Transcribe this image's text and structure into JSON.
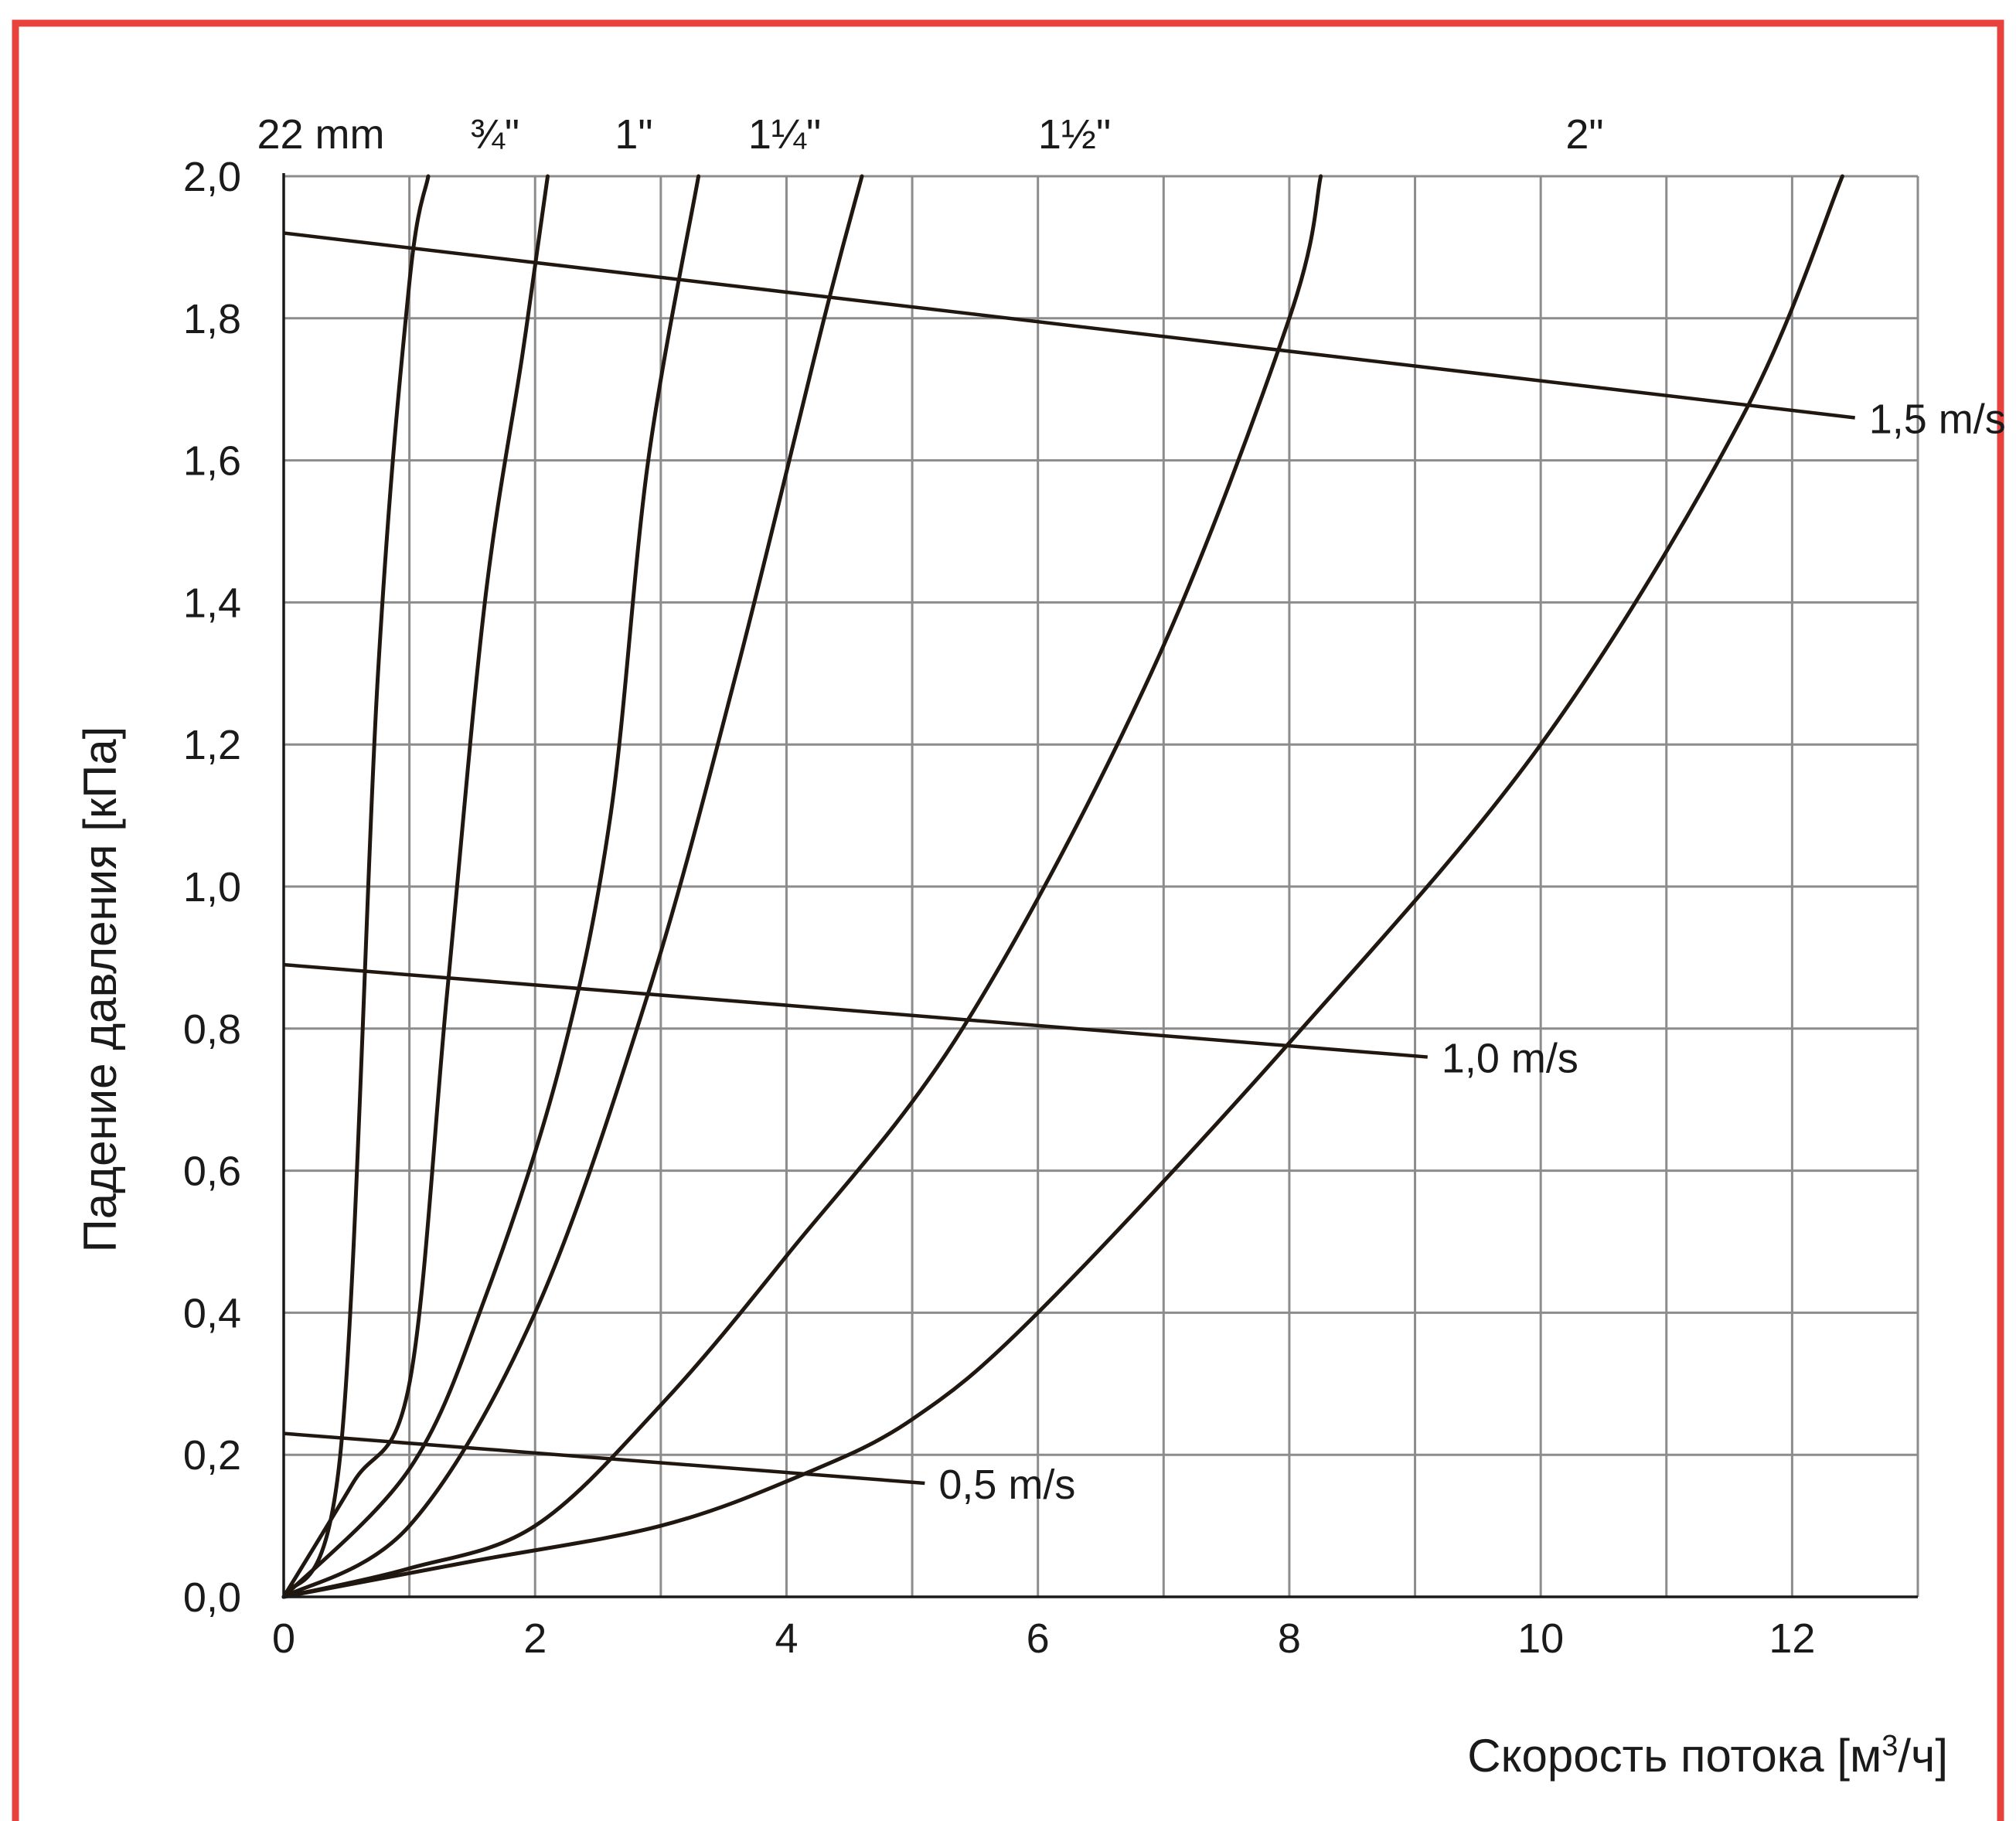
{
  "colors": {
    "border": "#e8423f",
    "curve": "#1f1710",
    "grid": "#8c8c8c",
    "background": "#ffffff"
  },
  "chart_data": {
    "type": "line",
    "title": "",
    "xlabel": "Скорость потока [м³/ч]",
    "xlabel_base": "Скорость потока [м",
    "xlabel_sup": "3",
    "xlabel_tail": "/ч]",
    "ylabel": "Падение давления [кПа]",
    "xlim": [
      0,
      13
    ],
    "ylim": [
      0,
      2.0
    ],
    "x_ticks": [
      0,
      2,
      4,
      6,
      8,
      10,
      12
    ],
    "x_tick_labels": [
      "0",
      "2",
      "4",
      "6",
      "8",
      "10",
      "12"
    ],
    "y_ticks": [
      0,
      0.2,
      0.4,
      0.6,
      0.8,
      1.0,
      1.2,
      1.4,
      1.6,
      1.8,
      2.0
    ],
    "y_tick_labels": [
      "0,0",
      "0,2",
      "0,4",
      "0,6",
      "0,8",
      "1,0",
      "1,2",
      "1,4",
      "1,6",
      "1,8",
      "2,0"
    ],
    "grid": true,
    "series": [
      {
        "name": "22 mm",
        "x": [
          0,
          0.45,
          0.75,
          1.0,
          1.15
        ],
        "y": [
          0,
          0.2,
          1.3,
          1.85,
          2.0
        ]
      },
      {
        "name": "¾\"",
        "x": [
          0,
          0.55,
          1.0,
          1.3,
          1.6,
          1.9,
          2.1
        ],
        "y": [
          0,
          0.16,
          0.3,
          0.85,
          1.4,
          1.75,
          2.0
        ]
      },
      {
        "name": "1\"",
        "x": [
          0,
          1.0,
          1.6,
          2.2,
          2.6,
          2.9,
          3.3
        ],
        "y": [
          0,
          0.18,
          0.42,
          0.75,
          1.1,
          1.6,
          2.0
        ]
      },
      {
        "name": "1¼\"",
        "x": [
          0,
          1.0,
          2.0,
          2.9,
          3.6,
          4.3,
          4.6
        ],
        "y": [
          0,
          0.1,
          0.4,
          0.85,
          1.3,
          1.8,
          2.0
        ]
      },
      {
        "name": "1½\"",
        "x": [
          0,
          1.0,
          2.0,
          3.0,
          4.0,
          5.4,
          6.9,
          8.0,
          8.25
        ],
        "y": [
          0,
          0.04,
          0.1,
          0.27,
          0.48,
          0.8,
          1.3,
          1.8,
          2.0
        ]
      },
      {
        "name": "2\"",
        "x": [
          0,
          1.5,
          3.0,
          4.1,
          5.0,
          6.0,
          8.0,
          10.0,
          11.6,
          12.4
        ],
        "y": [
          0,
          0.05,
          0.1,
          0.17,
          0.25,
          0.4,
          0.78,
          1.2,
          1.66,
          2.0
        ]
      }
    ],
    "velocity_lines": [
      {
        "name": "1,5 m/s",
        "x": [
          0,
          12.5
        ],
        "y": [
          1.92,
          1.66
        ]
      },
      {
        "name": "1,0 m/s",
        "x": [
          0,
          9.1
        ],
        "y": [
          0.89,
          0.76
        ]
      },
      {
        "name": "0,5 m/s",
        "x": [
          0,
          5.1
        ],
        "y": [
          0.23,
          0.16
        ]
      }
    ]
  }
}
